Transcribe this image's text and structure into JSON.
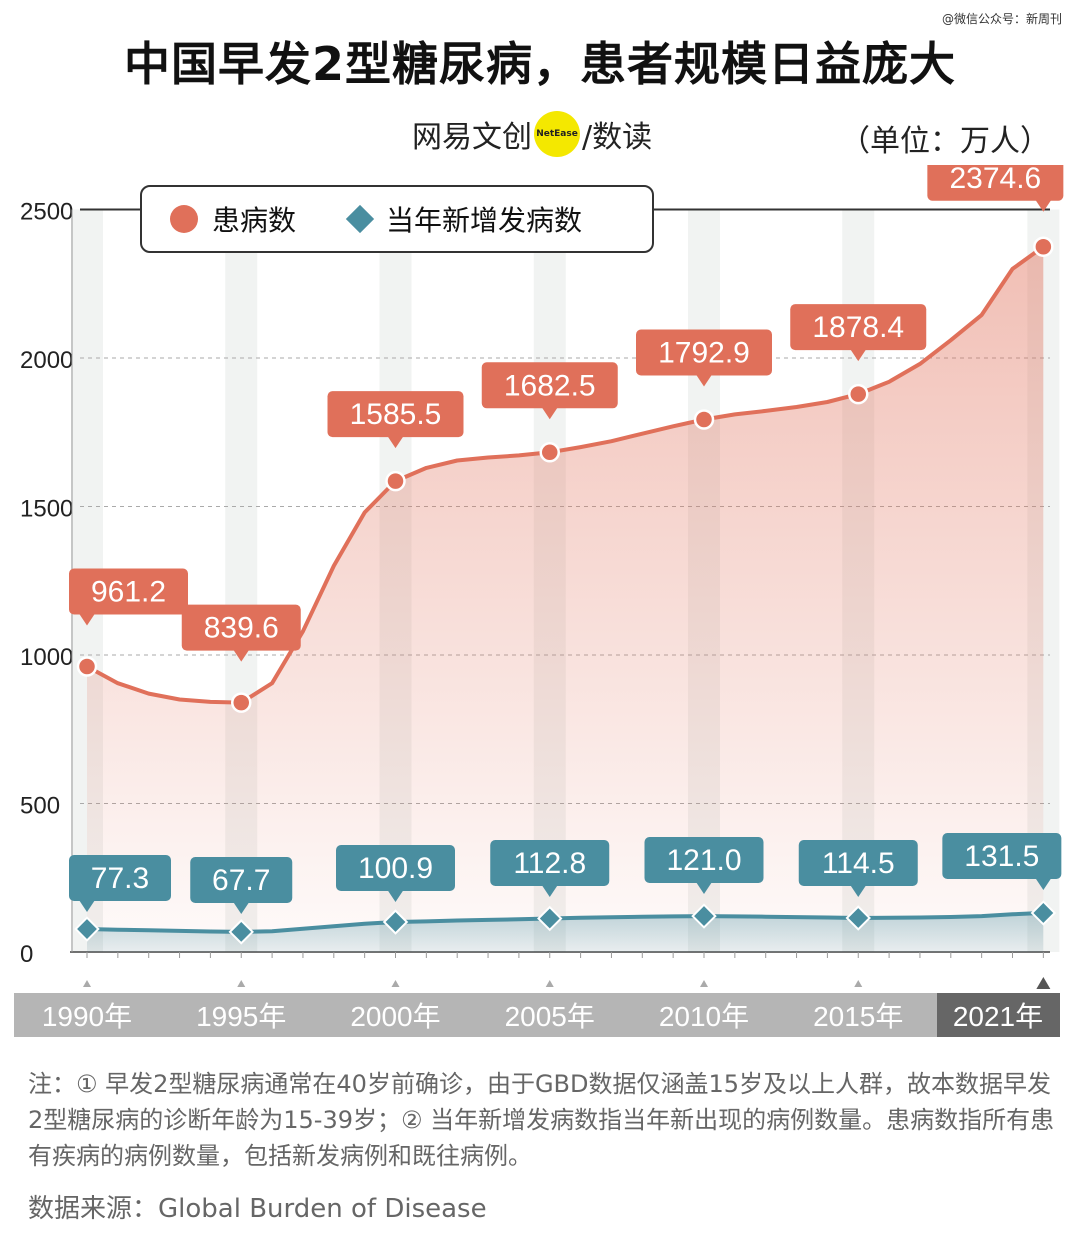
{
  "watermark": "@微信公众号：新周刊",
  "title": "中国早发2型糖尿病，患者规模日益庞大",
  "brand": {
    "left": "网易文创",
    "badge": "NetEase",
    "right": "/数读"
  },
  "unit": "（单位：万人）",
  "colors": {
    "prevalence": "#e0705a",
    "incidence": "#4a8ea0",
    "axis_band": "#b5b5b5",
    "highlight": "#666666"
  },
  "chart_data": {
    "type": "line",
    "x": [
      1990,
      1991,
      1992,
      1993,
      1994,
      1995,
      1996,
      1997,
      1998,
      1999,
      2000,
      2001,
      2002,
      2003,
      2004,
      2005,
      2006,
      2007,
      2008,
      2009,
      2010,
      2011,
      2012,
      2013,
      2014,
      2015,
      2016,
      2017,
      2018,
      2019,
      2020,
      2021
    ],
    "ylim": [
      0,
      2500
    ],
    "yticks": [
      0,
      500,
      1000,
      1500,
      2000,
      2500
    ],
    "xticks": [
      {
        "year": 1990,
        "label": "1990年"
      },
      {
        "year": 1995,
        "label": "1995年"
      },
      {
        "year": 2000,
        "label": "2000年"
      },
      {
        "year": 2005,
        "label": "2005年"
      },
      {
        "year": 2010,
        "label": "2010年"
      },
      {
        "year": 2015,
        "label": "2015年"
      },
      {
        "year": 2021,
        "label": "2021年"
      }
    ],
    "highlight_tick": 2021,
    "series": [
      {
        "name": "患病数",
        "values": [
          961.2,
          905,
          870,
          850,
          842,
          839.6,
          905,
          1080,
          1300,
          1480,
          1585.5,
          1630,
          1655,
          1665,
          1672,
          1682.5,
          1700,
          1720,
          1745,
          1770,
          1792.9,
          1810,
          1822,
          1835,
          1852,
          1878.4,
          1920,
          1980,
          2060,
          2145,
          2300,
          2374.6
        ],
        "labels": [
          {
            "year": 1990,
            "text": "961.2"
          },
          {
            "year": 1995,
            "text": "839.6"
          },
          {
            "year": 2000,
            "text": "1585.5"
          },
          {
            "year": 2005,
            "text": "1682.5"
          },
          {
            "year": 2010,
            "text": "1792.9"
          },
          {
            "year": 2015,
            "text": "1878.4"
          },
          {
            "year": 2021,
            "text": "2374.6"
          }
        ]
      },
      {
        "name": "当年新增发病数",
        "values": [
          77.3,
          75,
          73,
          71,
          69,
          67.7,
          70,
          78,
          87,
          95,
          100.9,
          103,
          106,
          108,
          110,
          112.8,
          115,
          117,
          118.5,
          120,
          121.0,
          120,
          119,
          117.5,
          116,
          114.5,
          115,
          116,
          118,
          121,
          127,
          131.5
        ],
        "labels": [
          {
            "year": 1990,
            "text": "77.3"
          },
          {
            "year": 1995,
            "text": "67.7"
          },
          {
            "year": 2000,
            "text": "100.9"
          },
          {
            "year": 2005,
            "text": "112.8"
          },
          {
            "year": 2010,
            "text": "121.0"
          },
          {
            "year": 2015,
            "text": "114.5"
          },
          {
            "year": 2021,
            "text": "131.5"
          }
        ]
      }
    ]
  },
  "legend": {
    "prevalence": "患病数",
    "incidence": "当年新增发病数"
  },
  "note": "注：① 早发2型糖尿病通常在40岁前确诊，由于GBD数据仅涵盖15岁及以上人群，故本数据早发2型糖尿病的诊断年龄为15-39岁；② 当年新增发病数指当年新出现的病例数量。患病数指所有患有疾病的病例数量，包括新发病例和既往病例。",
  "source": "数据来源：Global Burden of Disease"
}
